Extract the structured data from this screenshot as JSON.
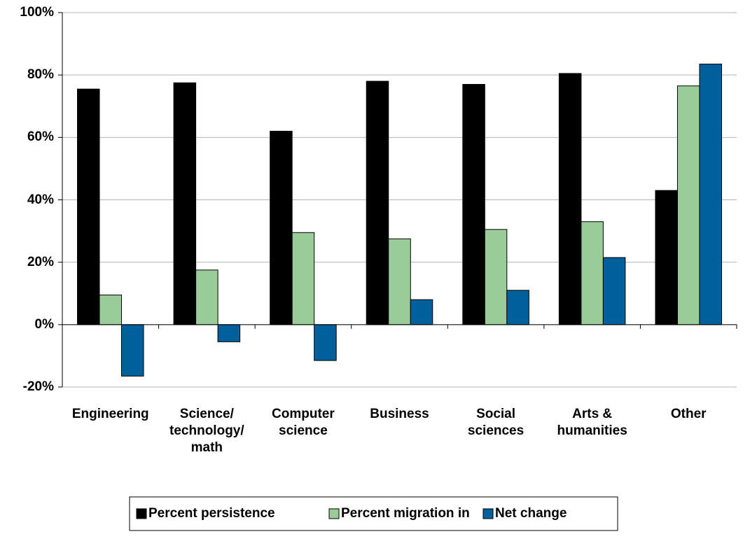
{
  "chart_data": {
    "type": "bar",
    "categories": [
      "Engineering",
      "Science/ technology/ math",
      "Computer science",
      "Business",
      "Social sciences",
      "Arts & humanities",
      "Other"
    ],
    "series": [
      {
        "name": "Percent persistence",
        "color": "#000000",
        "values": [
          75.5,
          77.5,
          62,
          78,
          77,
          80.5,
          43
        ]
      },
      {
        "name": "Percent migration in",
        "color": "#99cc99",
        "values": [
          9.5,
          17.5,
          29.5,
          27.5,
          30.5,
          33,
          76.5
        ]
      },
      {
        "name": "Net change",
        "color": "#00609c",
        "values": [
          -16.5,
          -5.5,
          -11.5,
          8,
          11,
          21.5,
          83.5
        ]
      }
    ],
    "ylim": [
      -20,
      100
    ],
    "yticks": [
      {
        "value": -20,
        "label": "-20%"
      },
      {
        "value": 0,
        "label": "0%"
      },
      {
        "value": 20,
        "label": "20%"
      },
      {
        "value": 40,
        "label": "40%"
      },
      {
        "value": 60,
        "label": "60%"
      },
      {
        "value": 80,
        "label": "80%"
      },
      {
        "value": 100,
        "label": "100%"
      }
    ],
    "grid": true,
    "legend": "bottom"
  }
}
